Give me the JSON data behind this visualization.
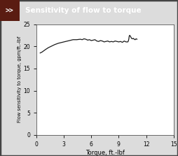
{
  "title": "Sensitivity of flow to torque",
  "xlabel": "Torque, ft.-lbf",
  "ylabel": "Flow sensitivity to torque, gpm/ft.-lbf",
  "xlim": [
    0,
    15
  ],
  "ylim": [
    0,
    25
  ],
  "xticks": [
    0,
    3,
    6,
    9,
    12,
    15
  ],
  "yticks": [
    0,
    5,
    10,
    15,
    20,
    25
  ],
  "header_bg": "#6B2318",
  "header_text_color": "#FFFFFF",
  "plot_bg": "#FFFFFF",
  "outer_bg": "#DCDCDC",
  "border_color": "#444444",
  "line_color": "#1A1A1A",
  "line_width": 0.9,
  "curve_x": [
    0.4,
    0.6,
    0.8,
    1.0,
    1.3,
    1.6,
    2.0,
    2.4,
    2.8,
    3.2,
    3.6,
    4.0,
    4.4,
    4.8,
    5.0,
    5.2,
    5.4,
    5.6,
    5.8,
    6.0,
    6.2,
    6.4,
    6.6,
    6.8,
    7.0,
    7.2,
    7.4,
    7.6,
    7.8,
    8.0,
    8.2,
    8.4,
    8.6,
    8.8,
    9.0,
    9.2,
    9.4,
    9.6,
    9.8,
    10.0,
    10.05,
    10.1,
    10.15,
    10.2,
    10.3,
    10.4,
    10.5,
    10.6,
    10.7,
    10.8,
    10.9,
    11.0
  ],
  "curve_y": [
    18.5,
    18.7,
    19.0,
    19.3,
    19.7,
    20.0,
    20.4,
    20.7,
    20.9,
    21.1,
    21.3,
    21.5,
    21.5,
    21.6,
    21.5,
    21.7,
    21.6,
    21.4,
    21.5,
    21.3,
    21.4,
    21.5,
    21.2,
    21.1,
    21.3,
    21.2,
    21.0,
    21.1,
    21.2,
    21.0,
    21.1,
    21.0,
    21.2,
    21.1,
    21.0,
    21.1,
    20.9,
    21.2,
    21.0,
    21.0,
    21.2,
    21.6,
    22.3,
    22.5,
    22.2,
    21.8,
    21.7,
    21.8,
    21.6,
    21.5,
    21.7,
    21.6
  ]
}
